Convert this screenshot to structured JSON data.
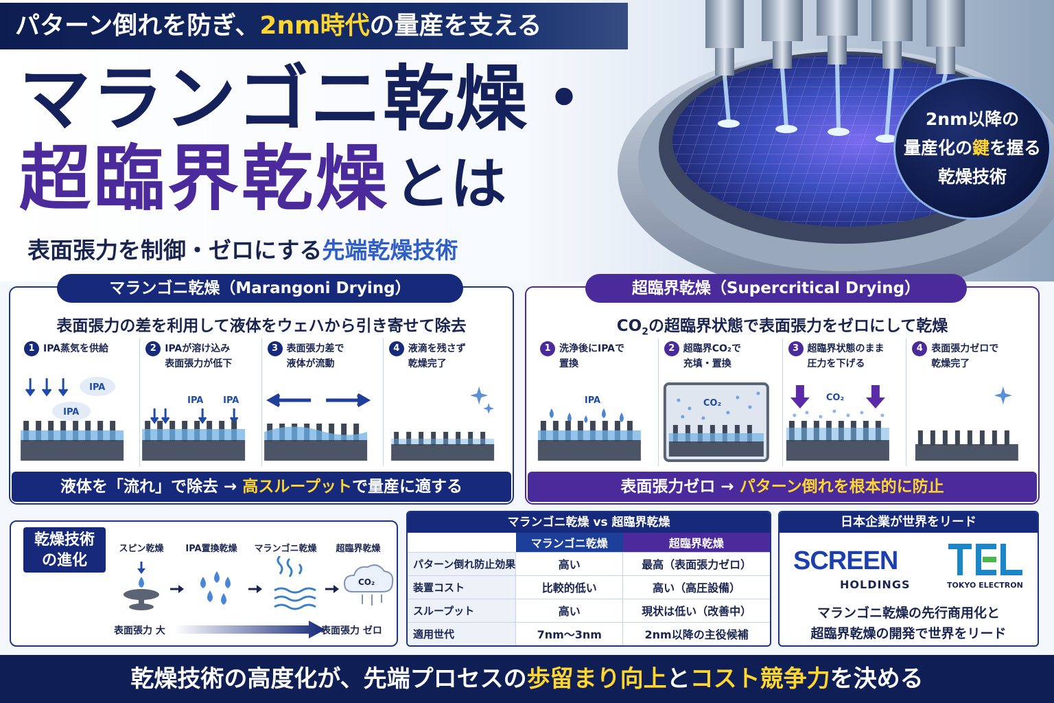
{
  "hero": {
    "banner_pre": "パターン倒れを防ぎ、",
    "banner_hl": "2nm時代",
    "banner_post": "の量産を支える",
    "title_line1": "マランゴニ乾燥・",
    "title_line2_big": "超臨界乾燥",
    "title_line2_small": "とは",
    "subtitle_pre": "表面張力を制御・ゼロにする",
    "subtitle_hl": "先端乾燥技術",
    "badge_line1": "2nm以降の",
    "badge_line2_pre": "量産化の",
    "badge_line2_hl": "鍵",
    "badge_line2_post": "を握る",
    "badge_line3": "乾燥技術"
  },
  "marangoni": {
    "tab": "マランゴニ乾燥（Marangoni Drying）",
    "lead": "表面張力の差を利用して液体をウェハから引き寄せて除去",
    "steps": [
      {
        "num": "1",
        "line1": "IPA蒸気を供給",
        "line2": ""
      },
      {
        "num": "2",
        "line1": "IPAが溶け込み",
        "line2": "表面張力が低下"
      },
      {
        "num": "3",
        "line1": "表面張力差で",
        "line2": "液体が流動"
      },
      {
        "num": "4",
        "line1": "液滴を残さず",
        "line2": "乾燥完了"
      }
    ],
    "ipa_label": "IPA",
    "foot_pre": "液体を「流れ」で除去 → ",
    "foot_hl": "高スループット",
    "foot_post": "で量産に適する"
  },
  "supercritical": {
    "tab": "超臨界乾燥（Supercritical Drying）",
    "lead_co": "CO",
    "lead_sub": "2",
    "lead_rest": "の超臨界状態で表面張力をゼロにして乾燥",
    "steps": [
      {
        "num": "1",
        "line1": "洗浄後にIPAで",
        "line2": "置換"
      },
      {
        "num": "2",
        "line1": "超臨界CO₂で",
        "line2": "充填・置換"
      },
      {
        "num": "3",
        "line1": "超臨界状態のまま",
        "line2": "圧力を下げる"
      },
      {
        "num": "4",
        "line1": "表面張力ゼロで",
        "line2": "乾燥完了"
      }
    ],
    "ipa_label": "IPA",
    "co2_label": "CO₂",
    "foot_pre": "表面張力ゼロ → ",
    "foot_hl": "パターン倒れを根本的に防止"
  },
  "evolution": {
    "tag_line1": "乾燥技術",
    "tag_line2": "の進化",
    "items": [
      "スピン乾燥",
      "IPA置換乾燥",
      "マランゴニ乾燥",
      "超臨界乾燥"
    ],
    "co2_label": "CO₂",
    "low_label": "表面張力 大",
    "high_label": "表面張力 ゼロ"
  },
  "comparison": {
    "title": "マランゴニ乾燥 vs 超臨界乾燥",
    "col_mg": "マランゴニ乾燥",
    "col_sc": "超臨界乾燥",
    "rows": [
      {
        "label": "パターン倒れ防止効果",
        "mg": "高い",
        "sc": "最高（表面張力ゼロ）"
      },
      {
        "label": "装置コスト",
        "mg": "比較的低い",
        "sc": "高い（高圧設備）"
      },
      {
        "label": "スループット",
        "mg": "高い",
        "sc": "現状は低い（改善中）"
      },
      {
        "label": "適用世代",
        "mg": "7nm〜3nm",
        "sc": "2nm以降の主役候補"
      }
    ]
  },
  "companies": {
    "title": "日本企業が世界をリード",
    "screen_logo": "SCREEN",
    "screen_sub": "HOLDINGS",
    "tel_sub": "TOKYO ELECTRON",
    "desc_line1": "マランゴニ乾燥の先行商用化と",
    "desc_line2": "超臨界乾燥の開発で世界をリード"
  },
  "bottom": {
    "pre": "乾燥技術の高度化が、先端プロセスの",
    "hl1": "歩留まり向上",
    "mid": "と",
    "hl2": "コスト競争力",
    "post": "を決める"
  },
  "colors": {
    "navy": "#16297a",
    "purple": "#4b2a9c",
    "yellow": "#ffd530"
  }
}
